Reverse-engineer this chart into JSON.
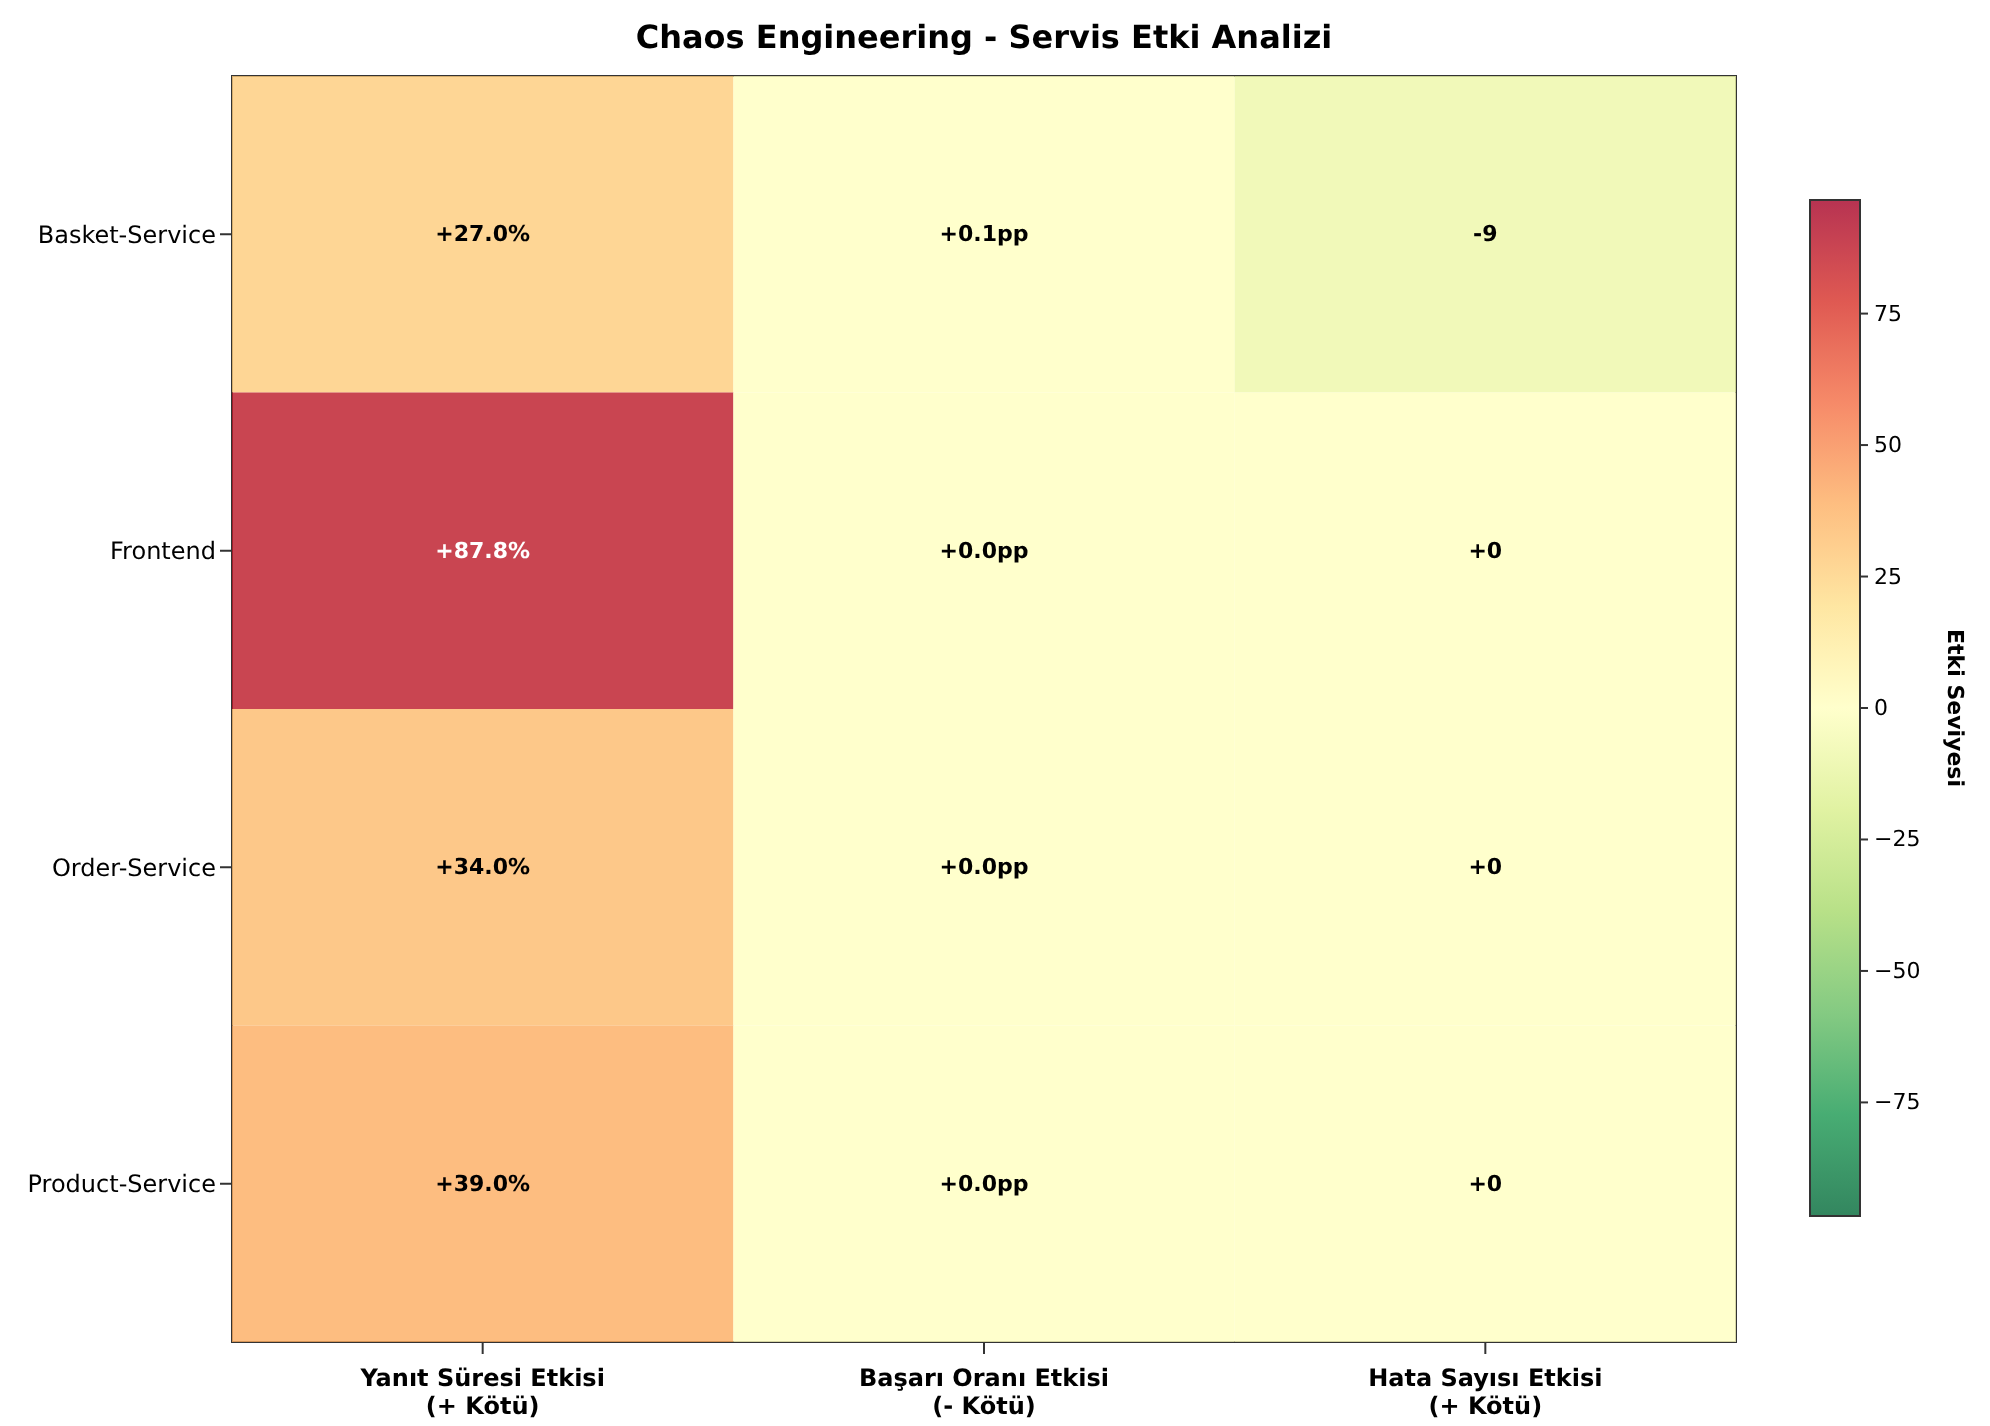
{
  "chart_data": {
    "type": "heatmap",
    "title": "Chaos Engineering - Servis Etki Analizi",
    "categories": [
      "Yanıt Süresi Etkisi\n(+ Kötü)",
      "Başarı Oranı Etkisi\n(- Kötü)",
      "Hata Sayısı Etkisi\n(+ Kötü)"
    ],
    "y_categories": [
      "Basket-Service",
      "Frontend",
      "Order-Service",
      "Product-Service"
    ],
    "cells": [
      [
        27.0,
        0.1,
        -9
      ],
      [
        87.8,
        0.0,
        0
      ],
      [
        34.0,
        0.0,
        0
      ],
      [
        39.0,
        0.0,
        0
      ]
    ],
    "cell_labels": [
      [
        "+27.0%",
        "+0.1pp",
        "-9"
      ],
      [
        "+87.8%",
        "+0.0pp",
        "+0"
      ],
      [
        "+34.0%",
        "+0.0pp",
        "+0"
      ],
      [
        "+39.0%",
        "+0.0pp",
        "+0"
      ]
    ],
    "clim": [
      -96.6,
      96.6
    ],
    "cticks": [
      -75,
      -50,
      -25,
      0,
      25,
      50,
      75
    ],
    "clabel": "Etki Seviyesi"
  }
}
